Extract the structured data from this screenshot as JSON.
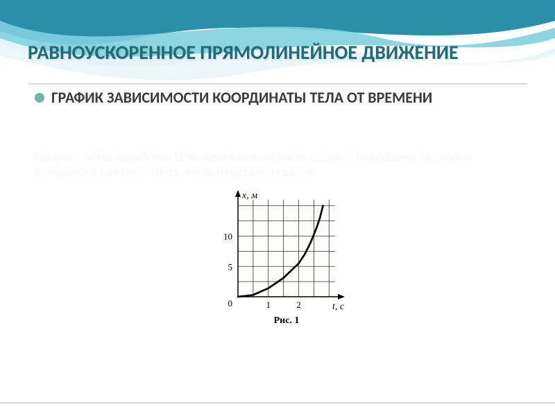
{
  "colors": {
    "title": "#1f6b7a",
    "bullet_dot": "#6fb8a8",
    "bullet_text": "#3a3a3a",
    "faint_text": "#f7f9f9",
    "wave_dark": "#2a8fa8",
    "wave_light": "#7fd0de",
    "wave_white": "#eaf6f8",
    "chart_stroke": "#000000",
    "chart_bg": "#fdfdfa"
  },
  "title": "РАВНОУСКОРЕННОЕ ПРЯМОЛИНЕЙНОЕ ДВИЖЕНИЕ",
  "bullet": "ГРАФИК ЗАВИСИМОСТИ КООРДИНАТЫ ТЕЛА ОТ ВРЕМЕНИ",
  "faint_paragraph": "График – ветвь параболы. Если начальная скорость равна 0, то вершина параболы находится в начале отсчета, ветвь направлена вверх.",
  "chart": {
    "type": "line",
    "caption": "Рис. 1",
    "x_label": "t, с",
    "y_label": "x, м",
    "x_ticks": [
      1,
      2
    ],
    "y_ticks": [
      5,
      10
    ],
    "xlim": [
      0,
      3.2
    ],
    "ylim": [
      0,
      16
    ],
    "grid_spacing_x": 0.5,
    "grid_spacing_y": 2.5,
    "curve_points": [
      [
        0,
        0
      ],
      [
        0.5,
        0.3
      ],
      [
        1,
        1.4
      ],
      [
        1.5,
        3.1
      ],
      [
        2,
        5.5
      ],
      [
        2.2,
        7.0
      ],
      [
        2.4,
        9.0
      ],
      [
        2.6,
        11.5
      ],
      [
        2.7,
        13.0
      ],
      [
        2.8,
        15.0
      ]
    ],
    "line_width": 2.6,
    "axis_width": 1.5,
    "grid_width": 0.8,
    "tick_fontsize": 13,
    "label_fontsize": 14,
    "caption_fontsize": 14
  }
}
